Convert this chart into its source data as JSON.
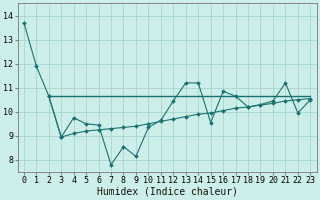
{
  "xlabel": "Humidex (Indice chaleur)",
  "bg_color": "#cceee8",
  "grid_color": "#aad4ce",
  "line_color": "#1a7070",
  "xlim": [
    -0.5,
    23.5
  ],
  "ylim": [
    7.5,
    14.5
  ],
  "xticks": [
    0,
    1,
    2,
    3,
    4,
    5,
    6,
    7,
    8,
    9,
    10,
    11,
    12,
    13,
    14,
    15,
    16,
    17,
    18,
    19,
    20,
    21,
    22,
    23
  ],
  "yticks": [
    8,
    9,
    10,
    11,
    12,
    13,
    14
  ],
  "line1_x": [
    0,
    1,
    2,
    3,
    4,
    5,
    6,
    7,
    8,
    9,
    10,
    11,
    12,
    13,
    14,
    15,
    16,
    17,
    18,
    19,
    20,
    21,
    22,
    23
  ],
  "line1_y": [
    13.7,
    11.9,
    10.65,
    8.95,
    9.75,
    9.5,
    9.45,
    7.8,
    8.55,
    8.15,
    9.35,
    9.65,
    10.45,
    11.2,
    11.2,
    9.55,
    10.85,
    10.65,
    10.2,
    10.3,
    10.45,
    11.2,
    9.95,
    10.5
  ],
  "line2_x": [
    2,
    23
  ],
  "line2_y": [
    10.65,
    10.65
  ],
  "line3_x": [
    2,
    3,
    4,
    5,
    6,
    7,
    8,
    9,
    10,
    11,
    12,
    13,
    14,
    15,
    16,
    17,
    18,
    19,
    20,
    21,
    22,
    23
  ],
  "line3_y": [
    10.65,
    8.95,
    9.1,
    9.2,
    9.25,
    9.3,
    9.35,
    9.4,
    9.5,
    9.6,
    9.7,
    9.8,
    9.9,
    9.95,
    10.05,
    10.15,
    10.2,
    10.28,
    10.35,
    10.45,
    10.5,
    10.55
  ],
  "xlabel_fontsize": 7,
  "tick_fontsize": 6
}
